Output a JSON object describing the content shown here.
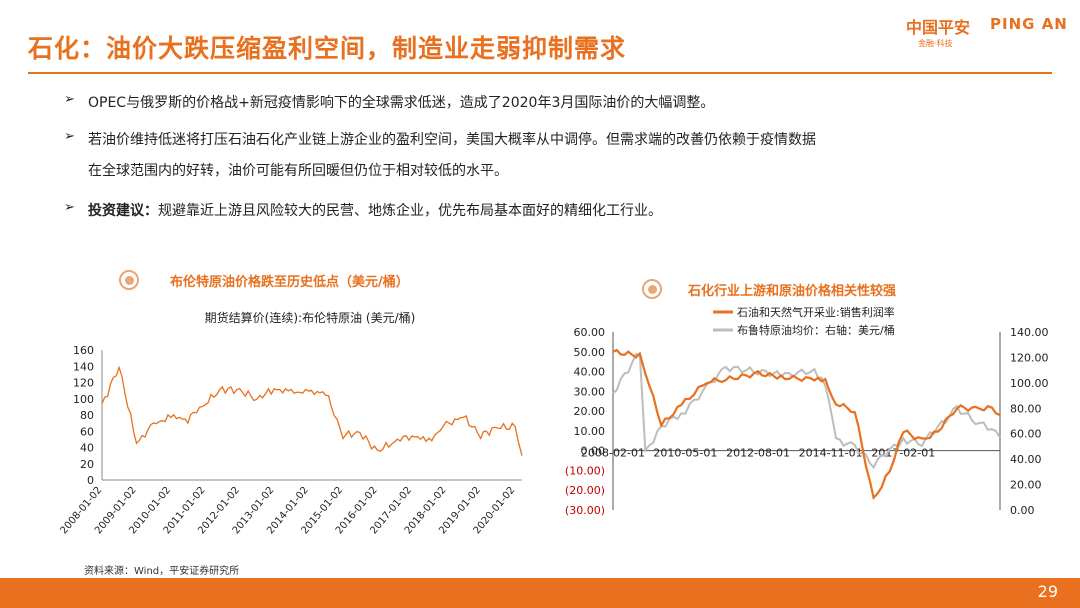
{
  "header": {
    "title": "石化：油价大跌压缩盈利空间，制造业走弱抑制需求",
    "logo_cn": "中国平安",
    "logo_en": "PING AN",
    "logo_sub": "金融·科技"
  },
  "bullets": [
    {
      "text": "OPEC与俄罗斯的价格战+新冠疫情影响下的全球需求低迷，造成了2020年3月国际油价的大幅调整。"
    },
    {
      "line1": "若油价维持低迷将打压石油石化产业链上游企业的盈利空间，美国大概率从中调停。但需求端的改善仍依赖于疫情数据",
      "line2": "在全球范围内的好转，油价可能有所回暖但仍位于相对较低的水平。"
    },
    {
      "bold": "投资建议：",
      "text": "规避靠近上游且风险较大的民营、地炼企业，优先布局基本面好的精细化工行业。"
    }
  ],
  "charts": {
    "left_heading": "布伦特原油价格跌至历史低点（美元/桶）",
    "right_heading": "石化行业上游和原油价格相关性较强"
  },
  "chart_data": [
    {
      "type": "line",
      "title": "期货结算价(连续):布伦特原油 (美元/桶)",
      "x": [
        "2008-01-02",
        "2008-07-01",
        "2009-01-02",
        "2009-07-01",
        "2010-01-02",
        "2010-07-01",
        "2011-01-02",
        "2011-07-01",
        "2012-01-02",
        "2012-07-01",
        "2013-01-02",
        "2013-07-01",
        "2014-01-02",
        "2014-07-01",
        "2015-01-02",
        "2015-07-01",
        "2016-01-02",
        "2016-07-01",
        "2017-01-02",
        "2017-07-01",
        "2018-01-02",
        "2018-07-01",
        "2019-01-02",
        "2019-07-01",
        "2020-01-02",
        "2020-03-15"
      ],
      "series": [
        {
          "values": [
            92,
            140,
            45,
            68,
            78,
            75,
            95,
            112,
            110,
            100,
            112,
            108,
            108,
            108,
            55,
            58,
            35,
            48,
            55,
            48,
            68,
            78,
            55,
            65,
            65,
            30
          ]
        }
      ],
      "x_ticks": [
        "2008-01-02",
        "2009-01-02",
        "2010-01-02",
        "2011-01-02",
        "2012-01-02",
        "2013-01-02",
        "2014-01-02",
        "2015-01-02",
        "2016-01-02",
        "2017-01-02",
        "2018-01-02",
        "2019-01-02",
        "2020-01-02"
      ],
      "y_ticks": [
        "0",
        "20",
        "40",
        "60",
        "80",
        "100",
        "120",
        "140",
        "160"
      ],
      "ylim": [
        0,
        160
      ],
      "color": "#e8701e"
    },
    {
      "type": "line",
      "x": [
        "2008-02-01",
        "2008-12-01",
        "2009-02-01",
        "2009-08-01",
        "2010-05-01",
        "2011-01-01",
        "2011-08-01",
        "2012-08-01",
        "2013-06-01",
        "2014-05-01",
        "2014-09-01",
        "2015-01-01",
        "2015-08-01",
        "2016-03-01",
        "2016-09-01",
        "2017-02-01",
        "2017-09-01",
        "2018-03-01",
        "2018-10-01",
        "2019-05-01",
        "2019-11-01",
        "2020-02-01"
      ],
      "series": [
        {
          "name": "石油和天然气开采业:销售利润率",
          "axis": "left",
          "color": "#e8701e",
          "values": [
            50,
            48,
            40,
            13,
            25,
            35,
            36,
            39,
            37,
            36,
            35,
            24,
            20,
            -25,
            -10,
            10,
            5,
            10,
            22,
            21,
            22,
            18
          ]
        },
        {
          "name": "布鲁特原油均价：右轴：美元/桶",
          "axis": "right",
          "color": "#bdbdbd",
          "values": [
            92,
            125,
            45,
            66,
            78,
            97,
            112,
            109,
            106,
            110,
            100,
            55,
            50,
            36,
            47,
            55,
            53,
            65,
            80,
            70,
            63,
            57
          ]
        }
      ],
      "x_ticks": [
        "2008-02-01",
        "2010-05-01",
        "2012-08-01",
        "2014-11-01",
        "2017-02-01"
      ],
      "y_left_ticks": [
        "60.00",
        "50.00",
        "40.00",
        "30.00",
        "20.00",
        "10.00",
        "0.00",
        "(10.00)",
        "(20.00)",
        "(30.00)"
      ],
      "y_right_ticks": [
        "140.00",
        "120.00",
        "100.00",
        "80.00",
        "60.00",
        "40.00",
        "20.00",
        "0.00"
      ],
      "ylim_left": [
        -30,
        60
      ],
      "ylim_right": [
        0,
        140
      ]
    }
  ],
  "source": "资料来源：Wind，平安证券研究所",
  "page_number": "29"
}
